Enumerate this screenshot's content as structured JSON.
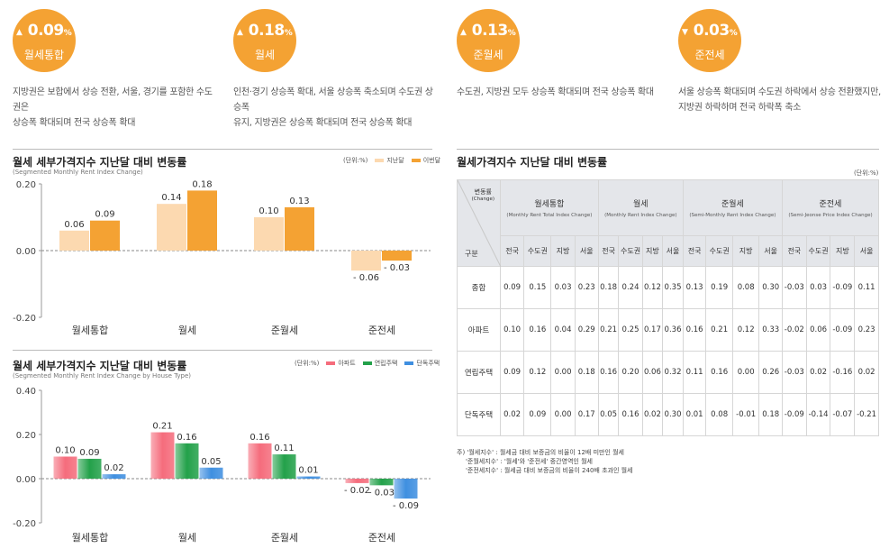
{
  "kpis": [
    {
      "arrow": "▲",
      "value": "0.09",
      "pct": "%",
      "label": "월세통합",
      "desc1": "지방권은 보합에서 상승 전환, 서울, 경기를 포함한 수도권은",
      "desc2": "상승폭 확대되며 전국 상승폭 확대"
    },
    {
      "arrow": "▲",
      "value": "0.18",
      "pct": "%",
      "label": "월세",
      "desc1": "인천·경기 상승폭 확대, 서울 상승폭 축소되며 수도권 상승폭",
      "desc2": "유지, 지방권은 상승폭 확대되며 전국 상승폭 확대"
    },
    {
      "arrow": "▲",
      "value": "0.13",
      "pct": "%",
      "label": "준월세",
      "desc1": "수도권, 지방권 모두 상승폭 확대되며 전국 상승폭 확대",
      "desc2": ""
    },
    {
      "arrow": "▼",
      "value": "0.03",
      "pct": "%",
      "label": "준전세",
      "desc1": "서울 상승폭 확대되며 수도권 하락에서 상승 전환했지만,",
      "desc2": "지방권 하락하며 전국 하락폭 축소"
    }
  ],
  "chart1": {
    "title": "월세 세부가격지수 지난달 대비 변동률",
    "subtitle": "(Segmented Monthly Rent Index Change)",
    "unit": "(단위:%)",
    "legend": [
      "지난달",
      "이번달"
    ]
  },
  "chart2": {
    "title": "월세 세부가격지수 지난달 대비 변동률",
    "subtitle": "(Segmented Monthly Rent Index Change by House Type)",
    "unit": "(단위:%)",
    "legend": [
      "아파트",
      "연립주택",
      "단독주택"
    ]
  },
  "table": {
    "title": "월세가격지수 지난달 대비 변동률",
    "unit": "(단위:%)",
    "corner_top": "변동률",
    "corner_top_en": "(Change)",
    "corner_bottom": "구분",
    "groups": [
      {
        "ko": "월세통합",
        "en": "(Monthly Rent Total Index Change)"
      },
      {
        "ko": "월세",
        "en": "(Monthly Rent Index Change)"
      },
      {
        "ko": "준월세",
        "en": "(Semi-Monthly Rent Index Change)"
      },
      {
        "ko": "준전세",
        "en": "(Semi-Jeonse Price Index Change)"
      }
    ],
    "subcols": [
      "전국",
      "수도권",
      "지방",
      "서울"
    ],
    "rows": [
      {
        "label": "종합",
        "values": [
          "0.09",
          "0.15",
          "0.03",
          "0.23",
          "0.18",
          "0.24",
          "0.12",
          "0.35",
          "0.13",
          "0.19",
          "0.08",
          "0.30",
          "-0.03",
          "0.03",
          "-0.09",
          "0.11"
        ]
      },
      {
        "label": "아파트",
        "values": [
          "0.10",
          "0.16",
          "0.04",
          "0.29",
          "0.21",
          "0.25",
          "0.17",
          "0.36",
          "0.16",
          "0.21",
          "0.12",
          "0.33",
          "-0.02",
          "0.06",
          "-0.09",
          "0.23"
        ]
      },
      {
        "label": "연립주택",
        "values": [
          "0.09",
          "0.12",
          "0.00",
          "0.18",
          "0.16",
          "0.20",
          "0.06",
          "0.32",
          "0.11",
          "0.16",
          "0.00",
          "0.26",
          "-0.03",
          "0.02",
          "-0.16",
          "0.02"
        ]
      },
      {
        "label": "단독주택",
        "values": [
          "0.02",
          "0.09",
          "0.00",
          "0.17",
          "0.05",
          "0.16",
          "0.02",
          "0.30",
          "0.01",
          "0.08",
          "-0.01",
          "0.18",
          "-0.09",
          "-0.14",
          "-0.07",
          "-0.21"
        ]
      }
    ],
    "notes": [
      "주) '월세지수' : 월세금 대비 보증금의 비율이 12배 미만인 월세",
      "'준월세지수' : '월세'와 '준전세' 중간영역인 월세",
      "'준전세지수' : 월세금 대비 보증금의 비율이 240배 초과인 월세"
    ]
  },
  "colors": {
    "accent": "#f4a233",
    "last_month": "#fcd9b0",
    "this_month": "#f4a233",
    "apt": "#f56c7c",
    "row_house": "#23a14a",
    "detached": "#3f8fe0"
  },
  "chart_data": [
    {
      "type": "bar",
      "title": "월세 세부가격지수 지난달 대비 변동률",
      "categories": [
        "월세통합",
        "월세",
        "준월세",
        "준전세"
      ],
      "series": [
        {
          "name": "지난달",
          "values": [
            0.06,
            0.14,
            0.1,
            -0.06
          ]
        },
        {
          "name": "이번달",
          "values": [
            0.09,
            0.18,
            0.13,
            -0.03
          ]
        }
      ],
      "ylim": [
        -0.2,
        0.2
      ],
      "yticks": [
        "-0.20",
        "0.00",
        "0.20"
      ],
      "grid": false,
      "legend": "top-right"
    },
    {
      "type": "bar",
      "title": "월세 세부가격지수 지난달 대비 변동률",
      "categories": [
        "월세통합",
        "월세",
        "준월세",
        "준전세"
      ],
      "series": [
        {
          "name": "아파트",
          "values": [
            0.1,
            0.21,
            0.16,
            -0.02
          ]
        },
        {
          "name": "연립주택",
          "values": [
            0.09,
            0.16,
            0.11,
            -0.03
          ]
        },
        {
          "name": "단독주택",
          "values": [
            0.02,
            0.05,
            0.01,
            -0.09
          ]
        }
      ],
      "ylim": [
        -0.2,
        0.4
      ],
      "yticks": [
        "-0.20",
        "0.00",
        "0.20",
        "0.40"
      ],
      "grid": false,
      "legend": "top-right"
    }
  ]
}
